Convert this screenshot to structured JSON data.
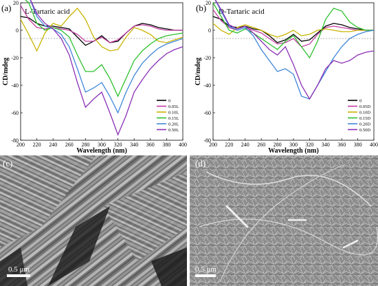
{
  "panel_labels": [
    "(a)",
    "(b)",
    "(c)",
    "(d)"
  ],
  "scale_bars": [
    "0.5 μm",
    "0.5 μm"
  ],
  "chart_data": [
    {
      "type": "line",
      "title": "L-Tartaric acid",
      "xlabel": "Wavelength (nm)",
      "ylabel": "CD/mdeg",
      "xlim": [
        200,
        400
      ],
      "ylim": [
        -80,
        20
      ],
      "xticks": [
        200,
        220,
        240,
        260,
        280,
        300,
        320,
        340,
        360,
        380,
        400
      ],
      "yticks": [
        20,
        0,
        -20,
        -40,
        -60,
        -80
      ],
      "legend_position": "bottom-right",
      "zero_line": true,
      "series": [
        {
          "name": "0",
          "color": "#000000",
          "x": [
            200,
            210,
            220,
            230,
            240,
            250,
            260,
            270,
            280,
            290,
            300,
            310,
            320,
            330,
            340,
            350,
            360,
            370,
            380,
            390,
            400
          ],
          "y": [
            10,
            9,
            5,
            3,
            3,
            2,
            1,
            -5,
            -11,
            -8,
            -4,
            -9,
            -8,
            -2,
            3,
            5,
            4,
            2,
            1,
            0,
            0
          ]
        },
        {
          "name": "0.05L",
          "color": "#c23ca0",
          "x": [
            200,
            210,
            220,
            230,
            240,
            250,
            260,
            270,
            280,
            290,
            300,
            310,
            320,
            330,
            340,
            350,
            360,
            370,
            380,
            390,
            400
          ],
          "y": [
            18,
            8,
            2,
            1,
            2,
            1,
            0,
            -3,
            -8,
            -8,
            -5,
            -9,
            -7,
            -2,
            3,
            4,
            3,
            1,
            0,
            0,
            0
          ]
        },
        {
          "name": "0.10L",
          "color": "#c8b400",
          "x": [
            200,
            210,
            220,
            230,
            240,
            250,
            260,
            270,
            280,
            290,
            300,
            310,
            320,
            330,
            340,
            350,
            360,
            370,
            380,
            390,
            400
          ],
          "y": [
            8,
            -3,
            -15,
            -2,
            5,
            3,
            10,
            16,
            8,
            -5,
            -12,
            -15,
            -14,
            -5,
            2,
            0,
            -3,
            -8,
            -9,
            -7,
            -5
          ]
        },
        {
          "name": "0.15L",
          "color": "#2cc02c",
          "x": [
            200,
            210,
            220,
            230,
            240,
            250,
            260,
            270,
            280,
            290,
            300,
            310,
            320,
            330,
            340,
            350,
            360,
            370,
            380,
            390,
            400
          ],
          "y": [
            30,
            20,
            5,
            0,
            2,
            0,
            -5,
            -18,
            -30,
            -30,
            -25,
            -35,
            -48,
            -35,
            -22,
            -15,
            -10,
            -6,
            -4,
            -3,
            -2
          ]
        },
        {
          "name": "0.20L",
          "color": "#3f86d8",
          "x": [
            200,
            210,
            220,
            230,
            240,
            250,
            260,
            270,
            280,
            290,
            300,
            310,
            320,
            330,
            340,
            350,
            360,
            370,
            380,
            390,
            400
          ],
          "y": [
            40,
            25,
            10,
            3,
            1,
            -3,
            -12,
            -28,
            -45,
            -42,
            -38,
            -48,
            -60,
            -45,
            -33,
            -24,
            -18,
            -13,
            -10,
            -8,
            -6
          ]
        },
        {
          "name": "0.50L",
          "color": "#8a2fb4",
          "x": [
            200,
            210,
            220,
            230,
            240,
            250,
            260,
            270,
            280,
            290,
            300,
            310,
            320,
            330,
            340,
            350,
            360,
            370,
            380,
            390,
            400
          ],
          "y": [
            45,
            30,
            12,
            5,
            1,
            -6,
            -18,
            -38,
            -56,
            -50,
            -45,
            -60,
            -76,
            -62,
            -45,
            -36,
            -28,
            -22,
            -17,
            -14,
            -12
          ]
        }
      ]
    },
    {
      "type": "line",
      "title": "D-Tartaric acid",
      "xlabel": "Wavelength (nm)",
      "ylabel": "CD/mdeg",
      "xlim": [
        200,
        400
      ],
      "ylim": [
        -80,
        20
      ],
      "xticks": [
        200,
        220,
        240,
        260,
        280,
        300,
        320,
        340,
        360,
        380,
        400
      ],
      "yticks": [
        20,
        0,
        -20,
        -40,
        -60,
        -80
      ],
      "legend_position": "bottom-right",
      "zero_line": true,
      "series": [
        {
          "name": "0",
          "color": "#000000",
          "x": [
            200,
            210,
            220,
            230,
            240,
            250,
            260,
            270,
            280,
            290,
            300,
            310,
            320,
            330,
            340,
            350,
            360,
            370,
            380,
            390,
            400
          ],
          "y": [
            10,
            8,
            3,
            2,
            3,
            1,
            0,
            -4,
            -9,
            -7,
            -3,
            -8,
            -7,
            -2,
            3,
            5,
            4,
            2,
            1,
            0,
            0
          ]
        },
        {
          "name": "0.05D",
          "color": "#c23ca0",
          "x": [
            200,
            210,
            220,
            230,
            240,
            250,
            260,
            270,
            280,
            290,
            300,
            310,
            320,
            330,
            340,
            350,
            360,
            370,
            380,
            390,
            400
          ],
          "y": [
            15,
            7,
            2,
            0,
            2,
            0,
            -2,
            -6,
            -10,
            -9,
            -6,
            -12,
            -10,
            -3,
            2,
            3,
            2,
            1,
            0,
            0,
            0
          ]
        },
        {
          "name": "0.10D",
          "color": "#c8b400",
          "x": [
            200,
            210,
            220,
            230,
            240,
            250,
            260,
            270,
            280,
            290,
            300,
            310,
            320,
            330,
            340,
            350,
            360,
            370,
            380,
            390,
            400
          ],
          "y": [
            5,
            0,
            -3,
            2,
            4,
            2,
            0,
            -3,
            -5,
            -3,
            0,
            -4,
            -3,
            0,
            1,
            0,
            -1,
            -1,
            0,
            0,
            0
          ]
        },
        {
          "name": "0.15D",
          "color": "#2cc02c",
          "x": [
            200,
            210,
            220,
            230,
            240,
            250,
            260,
            270,
            280,
            290,
            300,
            310,
            320,
            330,
            340,
            350,
            360,
            370,
            380,
            390,
            400
          ],
          "y": [
            20,
            10,
            0,
            -2,
            1,
            -2,
            -6,
            -10,
            -14,
            -8,
            -4,
            -12,
            -20,
            -8,
            8,
            16,
            14,
            6,
            2,
            0,
            0
          ]
        },
        {
          "name": "0.20D",
          "color": "#3f86d8",
          "x": [
            200,
            210,
            220,
            230,
            240,
            250,
            260,
            270,
            280,
            290,
            300,
            310,
            320,
            330,
            340,
            350,
            360,
            370,
            380,
            390,
            400
          ],
          "y": [
            28,
            14,
            3,
            0,
            2,
            -4,
            -14,
            -22,
            -30,
            -28,
            -32,
            -48,
            -50,
            -40,
            -30,
            -20,
            -12,
            -6,
            -3,
            -1,
            0
          ]
        },
        {
          "name": "0.50D",
          "color": "#8a2fb4",
          "x": [
            200,
            210,
            220,
            230,
            240,
            250,
            260,
            270,
            280,
            290,
            300,
            310,
            320,
            330,
            340,
            350,
            360,
            370,
            380,
            390,
            400
          ],
          "y": [
            30,
            15,
            4,
            1,
            3,
            -2,
            -8,
            -14,
            -18,
            -12,
            -25,
            -40,
            -50,
            -40,
            -28,
            -22,
            -24,
            -22,
            -18,
            -16,
            -15
          ]
        }
      ]
    }
  ]
}
